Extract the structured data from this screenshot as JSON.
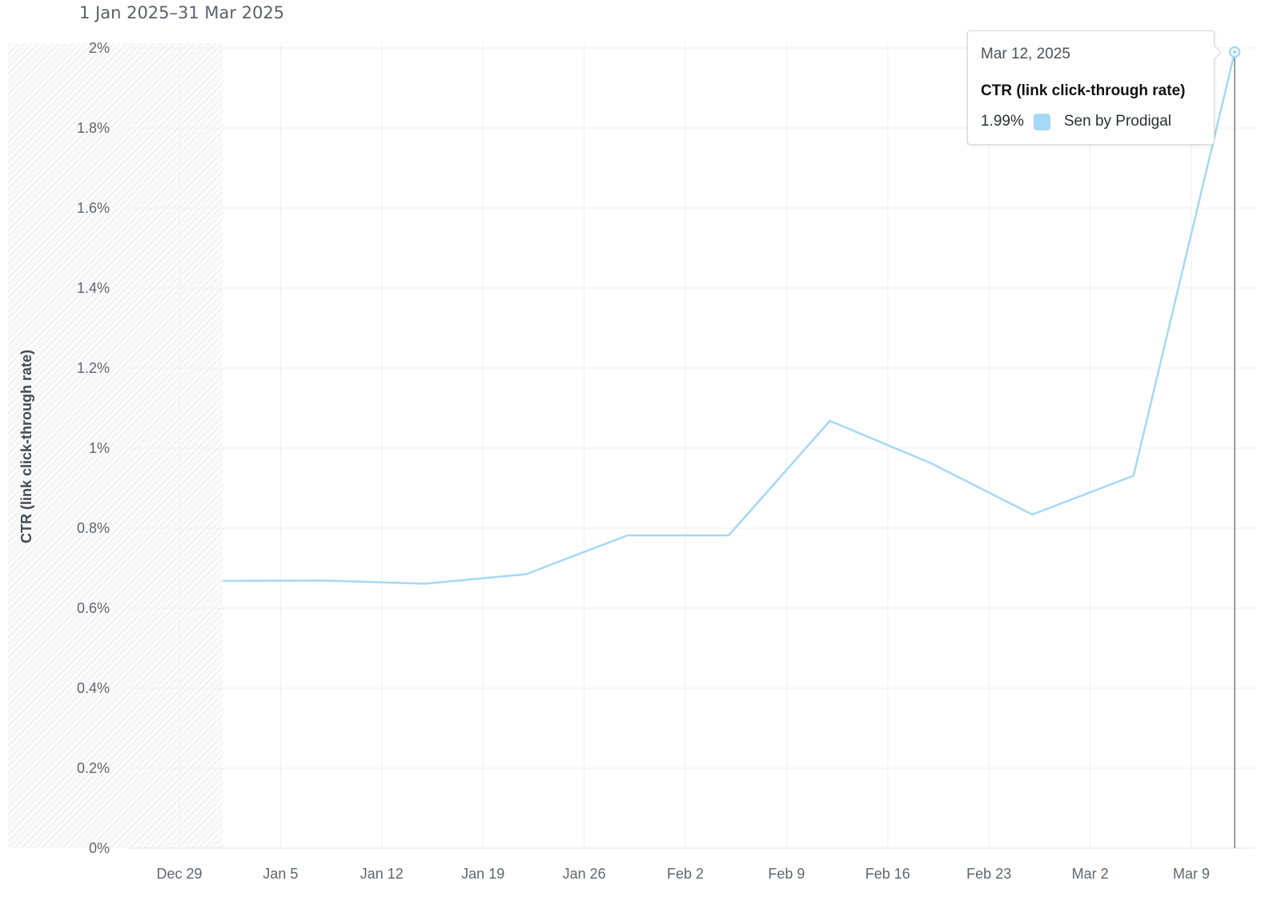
{
  "header": {
    "date_range": "1 Jan 2025–31 Mar 2025"
  },
  "tooltip": {
    "date": "Mar 12, 2025",
    "metric": "CTR (link click-through rate)",
    "value": "1.99%",
    "series": "Sen by Prodigal",
    "swatch_color": "#a5d8f6"
  },
  "chart_data": {
    "type": "line",
    "title": "",
    "xlabel": "",
    "ylabel": "CTR (link click-through rate)",
    "ylim": [
      0,
      2
    ],
    "y_unit": "%",
    "yticks": [
      "0%",
      "0.2%",
      "0.4%",
      "0.6%",
      "0.8%",
      "1%",
      "1.2%",
      "1.4%",
      "1.6%",
      "1.8%",
      "2%"
    ],
    "xticks": [
      "Dec 29",
      "Jan 5",
      "Jan 12",
      "Jan 19",
      "Jan 26",
      "Feb 2",
      "Feb 9",
      "Feb 16",
      "Feb 23",
      "Mar 2",
      "Mar 9"
    ],
    "xtick_dates": [
      "2024-12-29",
      "2025-01-05",
      "2025-01-12",
      "2025-01-19",
      "2025-01-26",
      "2025-02-02",
      "2025-02-09",
      "2025-02-16",
      "2025-02-23",
      "2025-03-02",
      "2025-03-09"
    ],
    "x_range": [
      "2024-12-26",
      "2025-03-12"
    ],
    "shaded_region": [
      "2024-12-26",
      "2025-01-01"
    ],
    "grid": true,
    "series": [
      {
        "name": "Sen by Prodigal",
        "color": "#a5d8f6",
        "points": [
          {
            "x": "2025-01-01",
            "y": 0.668
          },
          {
            "x": "2025-01-08",
            "y": 0.669
          },
          {
            "x": "2025-01-15",
            "y": 0.661
          },
          {
            "x": "2025-01-22",
            "y": 0.685
          },
          {
            "x": "2025-01-29",
            "y": 0.782
          },
          {
            "x": "2025-02-05",
            "y": 0.782
          },
          {
            "x": "2025-02-12",
            "y": 1.068
          },
          {
            "x": "2025-02-19",
            "y": 0.962
          },
          {
            "x": "2025-02-26",
            "y": 0.834
          },
          {
            "x": "2025-03-05",
            "y": 0.931
          },
          {
            "x": "2025-03-12",
            "y": 1.99
          }
        ]
      }
    ],
    "highlight": {
      "x": "2025-03-12",
      "y": 1.99
    }
  }
}
